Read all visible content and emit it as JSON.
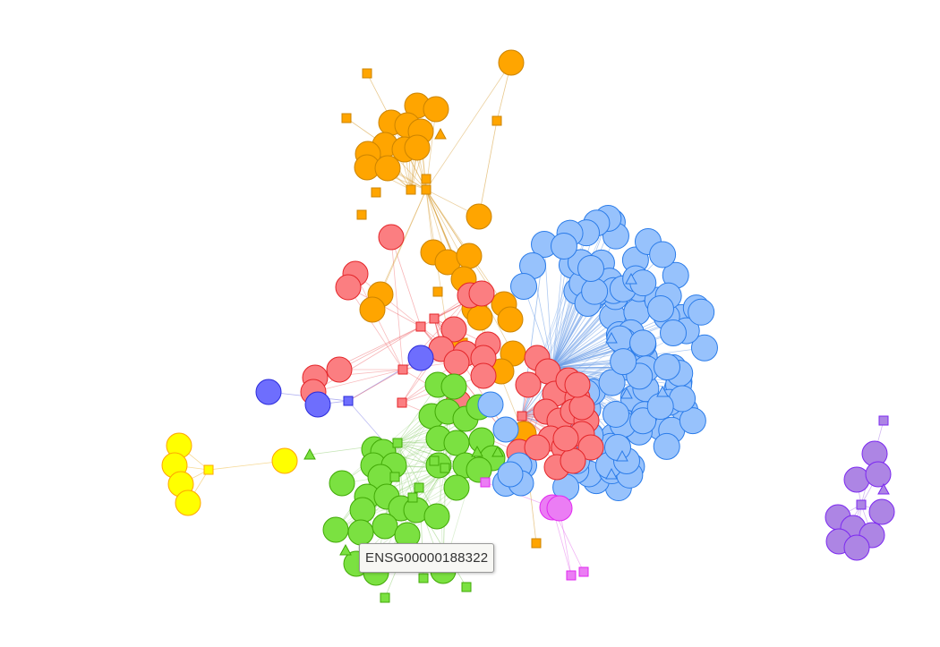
{
  "tooltip": {
    "text": "ENSG00000188322"
  },
  "clusters": [
    {
      "name": "orange",
      "fill": "#FFA500",
      "stroke": "#CC8400",
      "edge": "#D9A441"
    },
    {
      "name": "red",
      "fill": "#FB7E81",
      "stroke": "#E4262A",
      "edge": "#F06A6E"
    },
    {
      "name": "light-blue",
      "fill": "#97C2FC",
      "stroke": "#2B7CE9",
      "edge": "#6E9FE8"
    },
    {
      "name": "green",
      "fill": "#7BE141",
      "stroke": "#41A906",
      "edge": "#8ACB6A"
    },
    {
      "name": "purple",
      "fill": "#AD85E4",
      "stroke": "#7C29F0",
      "edge": "#B58BE8"
    },
    {
      "name": "pink",
      "fill": "#EB7DF4",
      "stroke": "#E129F0",
      "edge": "#E883EE"
    },
    {
      "name": "yellow",
      "fill": "#FFFF00",
      "stroke": "#FFA500",
      "edge": "#F2C96A"
    },
    {
      "name": "dark-blue",
      "fill": "#6E6EFD",
      "stroke": "#2B2BDB",
      "edge": "#7A7AE8"
    }
  ],
  "node_shapes": [
    "circle",
    "square",
    "triangle"
  ]
}
